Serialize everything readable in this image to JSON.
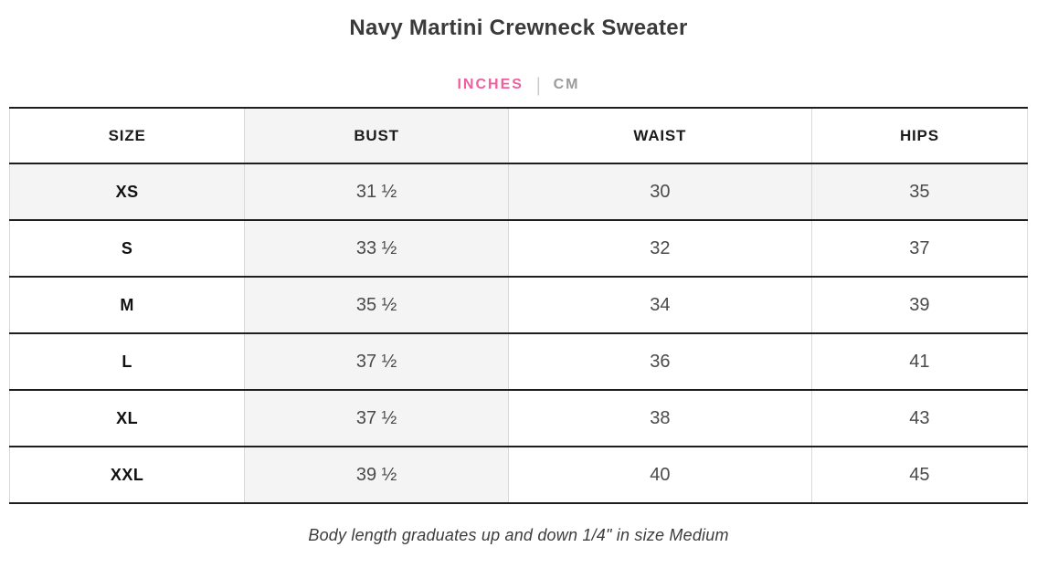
{
  "page": {
    "title": "Navy Martini Crewneck Sweater",
    "footnote": "Body length graduates up and down 1/4\" in size Medium"
  },
  "unit_toggle": {
    "separator": "|",
    "active_unit": "INCHES",
    "options": [
      {
        "label": "INCHES",
        "active": true
      },
      {
        "label": "CM",
        "active": false
      }
    ]
  },
  "table": {
    "columns": [
      "SIZE",
      "BUST",
      "WAIST",
      "HIPS"
    ],
    "highlighted_row": "XS",
    "highlighted_column": "BUST",
    "rows": [
      {
        "size": "XS",
        "bust": "31 ½",
        "waist": "30",
        "hips": "35"
      },
      {
        "size": "S",
        "bust": "33 ½",
        "waist": "32",
        "hips": "37"
      },
      {
        "size": "M",
        "bust": "35 ½",
        "waist": "34",
        "hips": "39"
      },
      {
        "size": "L",
        "bust": "37 ½",
        "waist": "36",
        "hips": "41"
      },
      {
        "size": "XL",
        "bust": "37 ½",
        "waist": "38",
        "hips": "43"
      },
      {
        "size": "XXL",
        "bust": "39 ½",
        "waist": "40",
        "hips": "45"
      }
    ]
  },
  "colors": {
    "accent_pink": "#ef5fa0",
    "inactive_gray": "#9b9b9b",
    "shaded_cell": "#f4f4f4",
    "rule_dark": "#1e1e1e",
    "rule_light": "#d9d9d9",
    "title_text": "#3a3a3a"
  }
}
